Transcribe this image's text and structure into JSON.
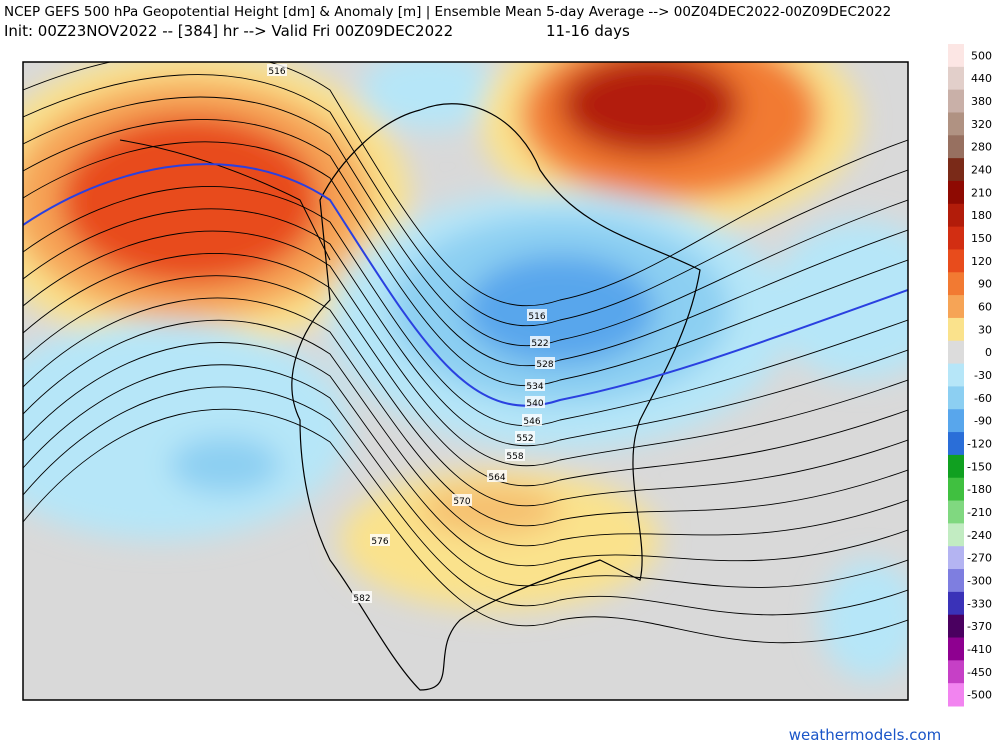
{
  "header": {
    "title": "NCEP GEFS 500 hPa Geopotential Height [dm] & Anomaly [m] | Ensemble Mean 5-day Average --> 00Z04DEC2022-00Z09DEC2022",
    "init": "Init: 00Z23NOV2022 -- [384] hr --> Valid Fri 00Z09DEC2022",
    "period": "11-16 days"
  },
  "contour_labels": [
    "516",
    "516",
    "522",
    "528",
    "534",
    "540",
    "546",
    "552",
    "558",
    "564",
    "570",
    "576",
    "582"
  ],
  "colorbar": [
    {
      "value": 500,
      "color": "#fce6e4"
    },
    {
      "value": 440,
      "color": "#e2cfca"
    },
    {
      "value": 380,
      "color": "#c9b0a8"
    },
    {
      "value": 320,
      "color": "#b09282"
    },
    {
      "value": 280,
      "color": "#977060"
    },
    {
      "value": 240,
      "color": "#7a2a18"
    },
    {
      "value": 210,
      "color": "#8e0a02"
    },
    {
      "value": 180,
      "color": "#b21c0a"
    },
    {
      "value": 150,
      "color": "#d22e12"
    },
    {
      "value": 120,
      "color": "#e84c1c"
    },
    {
      "value": 90,
      "color": "#f27a32"
    },
    {
      "value": 60,
      "color": "#f6a456"
    },
    {
      "value": 30,
      "color": "#fae28c"
    },
    {
      "value": 0,
      "color": "#dcdcdc"
    },
    {
      "value": -30,
      "color": "#b6e6f8"
    },
    {
      "value": -60,
      "color": "#8ccff2"
    },
    {
      "value": -90,
      "color": "#58a6ec"
    },
    {
      "value": -120,
      "color": "#2a6ed8"
    },
    {
      "value": -150,
      "color": "#10a020"
    },
    {
      "value": -180,
      "color": "#40c040"
    },
    {
      "value": -210,
      "color": "#80d880"
    },
    {
      "value": -240,
      "color": "#c2ecc2"
    },
    {
      "value": -270,
      "color": "#b4b4f2"
    },
    {
      "value": -300,
      "color": "#7e7ee0"
    },
    {
      "value": -330,
      "color": "#3a32b8"
    },
    {
      "value": -370,
      "color": "#4a0060"
    },
    {
      "value": -410,
      "color": "#8e0090"
    },
    {
      "value": -450,
      "color": "#c640c6"
    },
    {
      "value": -500,
      "color": "#f284f0"
    }
  ],
  "footer": "weathermodels.com"
}
